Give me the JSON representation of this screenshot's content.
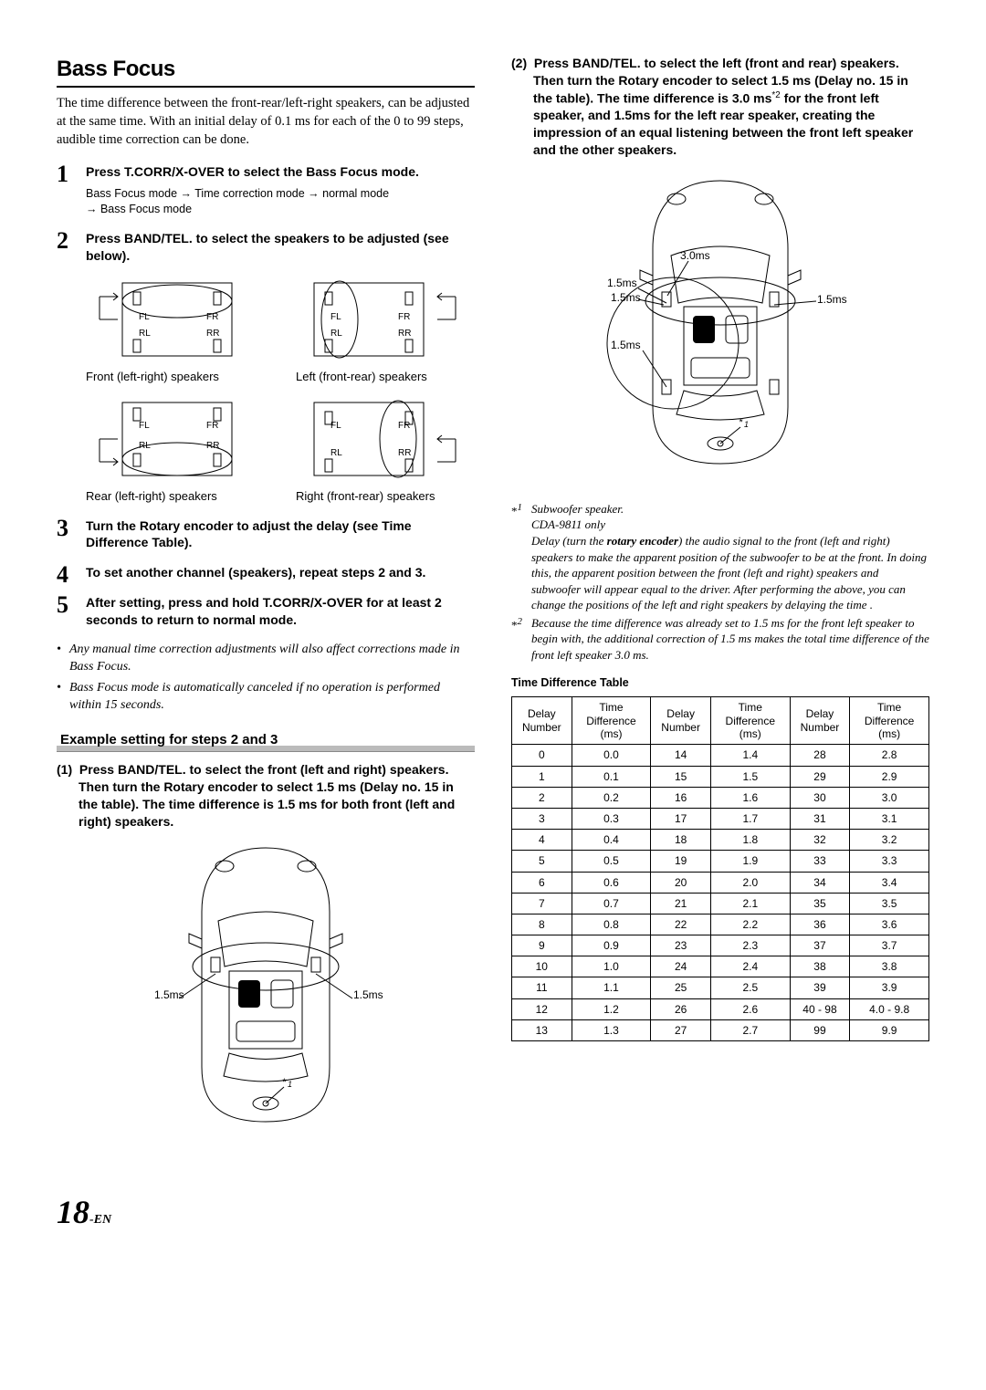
{
  "title": "Bass Focus",
  "intro": "The time difference between the front-rear/left-right speakers, can be adjusted at the same time. With an initial delay of 0.1 ms for each of the 0 to 99 steps, audible time correction can be done.",
  "steps": {
    "s1": {
      "pre": "Press ",
      "kw": "T.CORR/X-OVER",
      "post": " to select the Bass Focus mode.",
      "sub_parts": [
        "Bass Focus mode ",
        "→",
        " Time correction mode ",
        "→",
        " normal mode ",
        "→",
        " Bass Focus mode"
      ]
    },
    "s2": {
      "pre": "Press ",
      "kw": "BAND/TEL.",
      "post": " to select the speakers to be adjusted (see below)."
    },
    "s3": {
      "pre": "Turn the ",
      "kw": "Rotary encoder",
      "post": " to adjust the delay (see Time Difference Table)."
    },
    "s4": {
      "text": "To set another channel (speakers), repeat steps 2 and 3."
    },
    "s5": {
      "pre": "After setting, press and hold ",
      "kw": "T.CORR/X-OVER",
      "post": " for at least 2 seconds to return to normal mode."
    }
  },
  "speaker_labels": {
    "fl": "FL",
    "fr": "FR",
    "rl": "RL",
    "rr": "RR",
    "front": "Front (left-right) speakers",
    "left": "Left (front-rear) speakers",
    "rear": "Rear (left-right) speakers",
    "right": "Right (front-rear) speakers"
  },
  "bullets": {
    "b1": "Any manual time correction adjustments will also affect corrections made in Bass Focus.",
    "b2": "Bass Focus mode is automatically canceled if no operation is performed within 15 seconds."
  },
  "example": {
    "header": "Example setting for steps 2 and 3",
    "p1": {
      "num": "(1)",
      "pre": "Press ",
      "kw": "BAND/TEL.",
      "post": " to select the front (left and right) speakers. Then turn the Rotary encoder to select 1.5 ms (Delay no. 15 in the table). The time difference is 1.5 ms for both front (left and right) speakers."
    },
    "p2": {
      "num": "(2)",
      "pre": "Press ",
      "kw": "BAND/TEL.",
      "post_a": " to select the left (front and rear) speakers. Then turn the Rotary encoder to select 1.5 ms (Delay no. 15 in the table). The time difference is 3.0 ms",
      "sup": "*2",
      "post_b": " for the front left speaker, and 1.5ms for the left rear speaker, creating the impression of an equal listening between the front left speaker and the other speakers."
    }
  },
  "car_labels": {
    "c1_left": "1.5ms",
    "c1_right": "1.5ms",
    "c1_star": "*1",
    "c2_a": "3.0ms",
    "c2_b": "1.5ms",
    "c2_c": "1.5ms",
    "c2_d": "1.5ms",
    "c2_e": "1.5ms",
    "c2_star": "*1"
  },
  "footnotes": {
    "f1_marker": "*1",
    "f1_a": "Subwoofer speaker.",
    "f1_b": "CDA-9811 only",
    "f1_c_pre": "Delay (turn the ",
    "f1_c_bold": "rotary encoder",
    "f1_c_post": ") the audio signal to the front (left and right) speakers to make the apparent position of the subwoofer to be at the front. In doing this, the apparent position between the front (left and right) speakers and subwoofer will appear equal to the driver. After performing the above, you can change the positions of the left and right speakers by delaying the time .",
    "f2_marker": "*2",
    "f2": "Because the time difference was already set to 1.5 ms for the front left speaker to begin with, the additional correction of 1.5 ms makes the total time difference of the front left speaker 3.0 ms."
  },
  "table": {
    "title": "Time Difference Table",
    "headers": {
      "dn": "Delay Number",
      "td": "Time Difference (ms)"
    },
    "rows": [
      [
        "0",
        "0.0",
        "14",
        "1.4",
        "28",
        "2.8"
      ],
      [
        "1",
        "0.1",
        "15",
        "1.5",
        "29",
        "2.9"
      ],
      [
        "2",
        "0.2",
        "16",
        "1.6",
        "30",
        "3.0"
      ],
      [
        "3",
        "0.3",
        "17",
        "1.7",
        "31",
        "3.1"
      ],
      [
        "4",
        "0.4",
        "18",
        "1.8",
        "32",
        "3.2"
      ],
      [
        "5",
        "0.5",
        "19",
        "1.9",
        "33",
        "3.3"
      ],
      [
        "6",
        "0.6",
        "20",
        "2.0",
        "34",
        "3.4"
      ],
      [
        "7",
        "0.7",
        "21",
        "2.1",
        "35",
        "3.5"
      ],
      [
        "8",
        "0.8",
        "22",
        "2.2",
        "36",
        "3.6"
      ],
      [
        "9",
        "0.9",
        "23",
        "2.3",
        "37",
        "3.7"
      ],
      [
        "10",
        "1.0",
        "24",
        "2.4",
        "38",
        "3.8"
      ],
      [
        "11",
        "1.1",
        "25",
        "2.5",
        "39",
        "3.9"
      ],
      [
        "12",
        "1.2",
        "26",
        "2.6",
        "40 - 98",
        "4.0 - 9.8"
      ],
      [
        "13",
        "1.3",
        "27",
        "2.7",
        "99",
        "9.9"
      ]
    ]
  },
  "page_number": "18",
  "page_suffix": "-EN"
}
